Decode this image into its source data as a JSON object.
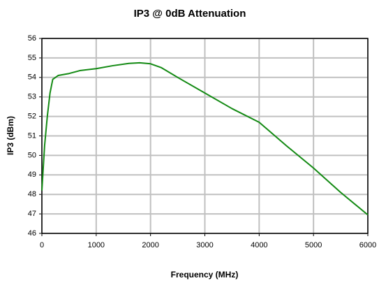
{
  "chart_data": {
    "type": "line",
    "title": "IP3 @ 0dB Attenuation",
    "x_label": "Frequency (MHz)",
    "y_label": "IP3 (dBm)",
    "x": [
      0,
      50,
      100,
      150,
      200,
      300,
      500,
      700,
      1000,
      1300,
      1600,
      1800,
      2000,
      2200,
      2500,
      3000,
      3500,
      4000,
      4500,
      5000,
      5500,
      6000
    ],
    "series": [
      {
        "name": "IP3",
        "color": "#138a13",
        "values": [
          48.2,
          50.5,
          52.0,
          53.2,
          53.9,
          54.1,
          54.2,
          54.35,
          54.45,
          54.6,
          54.72,
          54.75,
          54.7,
          54.5,
          54.0,
          53.2,
          52.4,
          51.7,
          50.5,
          49.35,
          48.1,
          46.95
        ]
      }
    ],
    "xlim": [
      0,
      6000
    ],
    "xticks": [
      0,
      1000,
      2000,
      3000,
      4000,
      5000,
      6000
    ],
    "ylim": [
      46,
      56
    ],
    "yticks": [
      46,
      47,
      48,
      49,
      50,
      51,
      52,
      53,
      54,
      55,
      56
    ],
    "grid": true
  }
}
